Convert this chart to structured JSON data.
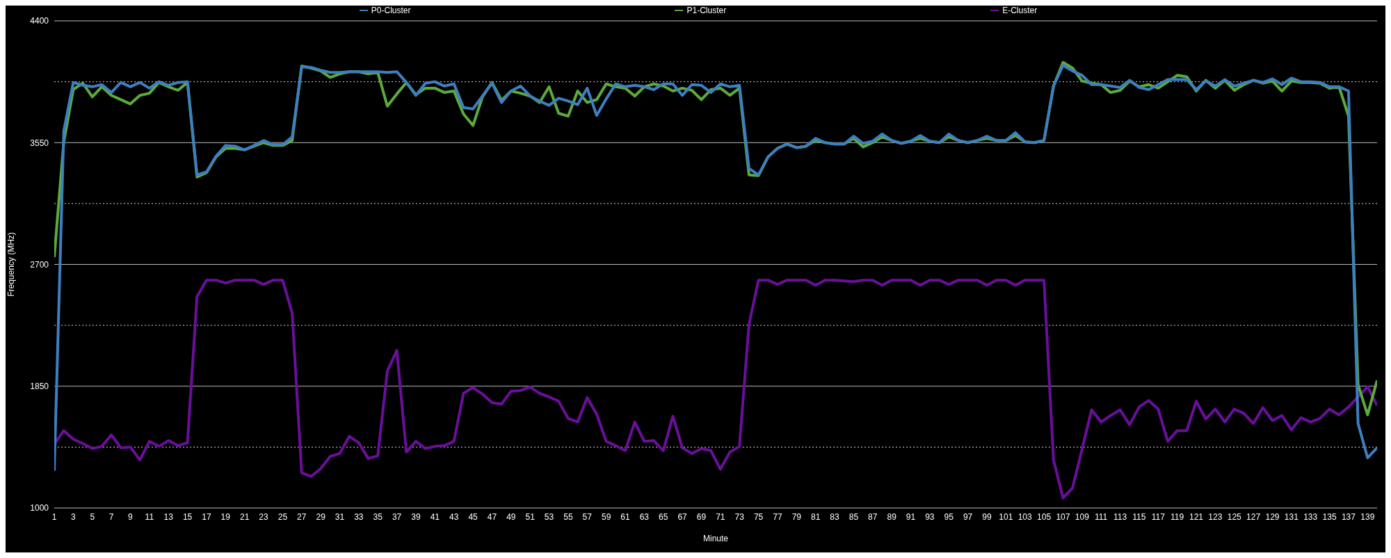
{
  "chart_data": {
    "type": "line",
    "xlabel": "Minute",
    "ylabel": "Frequency (MHz)",
    "x": [
      1,
      2,
      3,
      4,
      5,
      6,
      7,
      8,
      9,
      10,
      11,
      12,
      13,
      14,
      15,
      16,
      17,
      18,
      19,
      20,
      21,
      22,
      23,
      24,
      25,
      26,
      27,
      28,
      29,
      30,
      31,
      32,
      33,
      34,
      35,
      36,
      37,
      38,
      39,
      40,
      41,
      42,
      43,
      44,
      45,
      46,
      47,
      48,
      49,
      50,
      51,
      52,
      53,
      54,
      55,
      56,
      57,
      58,
      59,
      60,
      61,
      62,
      63,
      64,
      65,
      66,
      67,
      68,
      69,
      70,
      71,
      72,
      73,
      74,
      75,
      76,
      77,
      78,
      79,
      80,
      81,
      82,
      83,
      84,
      85,
      86,
      87,
      88,
      89,
      90,
      91,
      92,
      93,
      94,
      95,
      96,
      97,
      98,
      99,
      100,
      101,
      102,
      103,
      104,
      105,
      106,
      107,
      108,
      109,
      110,
      111,
      112,
      113,
      114,
      115,
      116,
      117,
      118,
      119,
      120,
      121,
      122,
      123,
      124,
      125,
      126,
      127,
      128,
      129,
      130,
      131,
      132,
      133,
      134,
      135,
      136,
      137,
      138,
      139,
      140
    ],
    "series": [
      {
        "name": "P0-Cluster",
        "color": "#3d7fc1",
        "values": [
          1260,
          3630,
          3970,
          3950,
          3940,
          3955,
          3900,
          3970,
          3940,
          3970,
          3930,
          3975,
          3950,
          3970,
          3975,
          3325,
          3345,
          3455,
          3530,
          3525,
          3500,
          3530,
          3565,
          3535,
          3535,
          3590,
          4080,
          4075,
          4055,
          4040,
          4040,
          4045,
          4045,
          4045,
          4045,
          4040,
          4045,
          3970,
          3880,
          3965,
          3975,
          3945,
          3960,
          3795,
          3785,
          3875,
          3965,
          3830,
          3910,
          3945,
          3875,
          3840,
          3810,
          3860,
          3840,
          3815,
          3930,
          3740,
          3855,
          3960,
          3940,
          3950,
          3940,
          3920,
          3960,
          3960,
          3880,
          3955,
          3950,
          3900,
          3960,
          3940,
          3950,
          3370,
          3325,
          3450,
          3510,
          3540,
          3515,
          3525,
          3580,
          3550,
          3540,
          3540,
          3595,
          3545,
          3560,
          3610,
          3565,
          3545,
          3560,
          3600,
          3560,
          3550,
          3610,
          3565,
          3550,
          3565,
          3595,
          3565,
          3565,
          3620,
          3555,
          3550,
          3565,
          3945,
          4090,
          4050,
          4020,
          3955,
          3955,
          3945,
          3935,
          3985,
          3935,
          3920,
          3955,
          3990,
          3990,
          3990,
          3920,
          3980,
          3945,
          3990,
          3945,
          3965,
          3985,
          3970,
          3995,
          3955,
          4000,
          3975,
          3975,
          3970,
          3940,
          3940,
          3910,
          1590,
          1350,
          1420
        ]
      },
      {
        "name": "P1-Cluster",
        "color": "#5bab3a",
        "values": [
          2750,
          3555,
          3920,
          3965,
          3870,
          3940,
          3880,
          3850,
          3820,
          3880,
          3895,
          3970,
          3940,
          3915,
          3970,
          3310,
          3340,
          3450,
          3510,
          3510,
          3500,
          3525,
          3550,
          3530,
          3530,
          3565,
          4085,
          4070,
          4050,
          4005,
          4030,
          4045,
          4045,
          4030,
          4040,
          3805,
          3890,
          3970,
          3885,
          3930,
          3930,
          3900,
          3910,
          3750,
          3670,
          3870,
          3970,
          3845,
          3910,
          3895,
          3875,
          3830,
          3940,
          3755,
          3735,
          3910,
          3830,
          3850,
          3960,
          3940,
          3930,
          3875,
          3940,
          3960,
          3945,
          3910,
          3930,
          3915,
          3850,
          3920,
          3930,
          3880,
          3930,
          3325,
          3320,
          3450,
          3510,
          3540,
          3515,
          3525,
          3565,
          3550,
          3540,
          3540,
          3580,
          3520,
          3550,
          3590,
          3565,
          3545,
          3560,
          3580,
          3560,
          3550,
          3590,
          3565,
          3550,
          3565,
          3580,
          3565,
          3565,
          3600,
          3555,
          3550,
          3565,
          3945,
          4110,
          4070,
          3980,
          3965,
          3955,
          3900,
          3915,
          3980,
          3940,
          3955,
          3930,
          3975,
          4020,
          4010,
          3910,
          3985,
          3930,
          3985,
          3915,
          3955,
          3985,
          3965,
          3980,
          3910,
          3980,
          3970,
          3970,
          3965,
          3930,
          3940,
          3735,
          1860,
          1650,
          1890
        ]
      },
      {
        "name": "E-Cluster",
        "color": "#6a0f9a",
        "values": [
          1445,
          1540,
          1480,
          1450,
          1415,
          1430,
          1510,
          1420,
          1425,
          1335,
          1465,
          1430,
          1470,
          1435,
          1455,
          2475,
          2590,
          2590,
          2570,
          2590,
          2590,
          2590,
          2560,
          2590,
          2590,
          2360,
          1245,
          1220,
          1275,
          1360,
          1380,
          1500,
          1455,
          1345,
          1365,
          1955,
          2100,
          1390,
          1465,
          1415,
          1430,
          1435,
          1465,
          1800,
          1840,
          1795,
          1735,
          1725,
          1815,
          1820,
          1845,
          1800,
          1775,
          1745,
          1625,
          1600,
          1770,
          1655,
          1465,
          1435,
          1400,
          1600,
          1465,
          1470,
          1400,
          1640,
          1420,
          1380,
          1415,
          1400,
          1270,
          1390,
          1430,
          2280,
          2590,
          2590,
          2560,
          2590,
          2590,
          2590,
          2555,
          2590,
          2590,
          2585,
          2580,
          2590,
          2590,
          2555,
          2590,
          2590,
          2590,
          2555,
          2590,
          2590,
          2560,
          2590,
          2590,
          2590,
          2555,
          2590,
          2590,
          2555,
          2590,
          2590,
          2590,
          1335,
          1070,
          1140,
          1410,
          1685,
          1600,
          1645,
          1685,
          1580,
          1705,
          1750,
          1690,
          1465,
          1540,
          1540,
          1745,
          1620,
          1690,
          1600,
          1690,
          1660,
          1590,
          1700,
          1610,
          1645,
          1545,
          1630,
          1600,
          1625,
          1690,
          1650,
          1705,
          1775,
          1845,
          1715
        ]
      }
    ],
    "xlim": [
      1,
      140
    ],
    "xticks": [
      1,
      3,
      5,
      7,
      9,
      11,
      13,
      15,
      17,
      19,
      21,
      23,
      25,
      27,
      29,
      31,
      33,
      35,
      37,
      39,
      41,
      43,
      45,
      47,
      49,
      51,
      53,
      55,
      57,
      59,
      61,
      63,
      65,
      67,
      69,
      71,
      73,
      75,
      77,
      79,
      81,
      83,
      85,
      87,
      89,
      91,
      93,
      95,
      97,
      99,
      101,
      103,
      105,
      107,
      109,
      111,
      113,
      115,
      117,
      119,
      121,
      123,
      125,
      127,
      129,
      131,
      133,
      135,
      137,
      139
    ],
    "ylim": [
      1000,
      4400
    ],
    "yticks": [
      1000,
      {
        "value": 1425,
        "label": null
      },
      1850,
      {
        "value": 2275,
        "label": null
      },
      2700,
      {
        "value": 3125,
        "label": null
      },
      3550,
      {
        "value": 3975,
        "label": null
      },
      4400
    ],
    "grid": "y",
    "legend": "top",
    "marker": "none",
    "line_style": "solid"
  }
}
